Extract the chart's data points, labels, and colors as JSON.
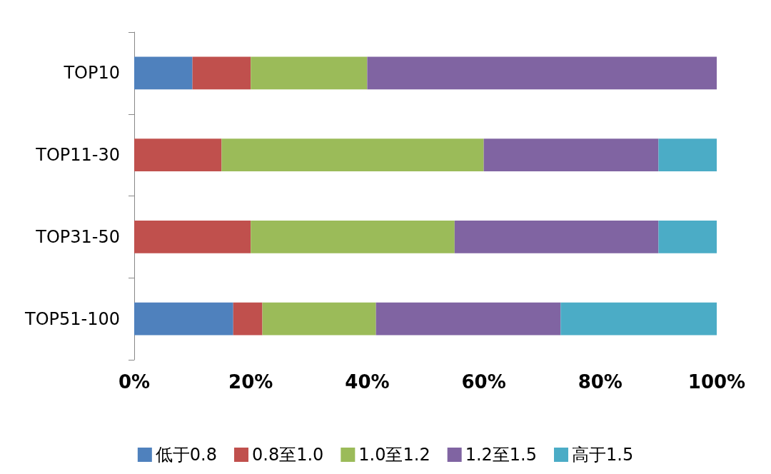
{
  "chart_data": {
    "type": "bar",
    "orientation": "horizontal",
    "stacked": true,
    "categories": [
      "TOP10",
      "TOP11-30",
      "TOP31-50",
      "TOP51-100"
    ],
    "series": [
      {
        "name": "低于0.8",
        "color": "#4f81bd",
        "values": [
          10,
          0,
          0,
          17
        ]
      },
      {
        "name": "0.8至1.0",
        "color": "#c0504d",
        "values": [
          10,
          15,
          20,
          5
        ]
      },
      {
        "name": "1.0至1.2",
        "color": "#9bbb59",
        "values": [
          20,
          45,
          35,
          19.5
        ]
      },
      {
        "name": "1.2至1.5",
        "color": "#8064a2",
        "values": [
          60,
          30,
          35,
          31.7
        ]
      },
      {
        "name": "高于1.5",
        "color": "#4bacc6",
        "values": [
          0,
          10,
          10,
          26.8
        ]
      }
    ],
    "xlim": [
      0,
      100
    ],
    "xticks": [
      {
        "value": 0,
        "label": "0%"
      },
      {
        "value": 20,
        "label": "20%"
      },
      {
        "value": 40,
        "label": "40%"
      },
      {
        "value": 60,
        "label": "60%"
      },
      {
        "value": 80,
        "label": "80%"
      },
      {
        "value": 100,
        "label": "100%"
      }
    ],
    "grid": false,
    "legend": "bottom"
  }
}
